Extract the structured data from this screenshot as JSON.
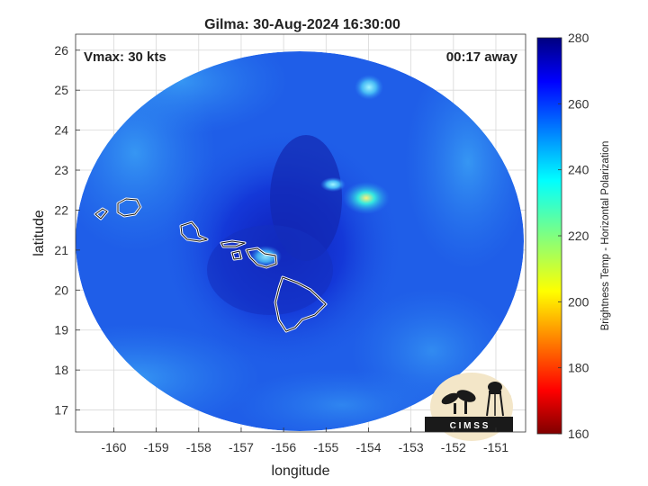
{
  "title": "Gilma: 30-Aug-2024 16:30:00",
  "vmax_label": "Vmax: 30 kts",
  "away_label": "00:17 away",
  "xlabel": "longitude",
  "ylabel": "latitude",
  "colorbar_label": "Brightness Temp - Horizontal Polarization",
  "logo_text": "C I M S S",
  "chart_data": {
    "type": "heatmap",
    "xlim": [
      -160.9,
      -150.3
    ],
    "ylim": [
      16.45,
      26.4
    ],
    "x_ticks": [
      -160,
      -159,
      -158,
      -157,
      -156,
      -155,
      -154,
      -153,
      -152,
      -151
    ],
    "y_ticks": [
      17,
      18,
      19,
      20,
      21,
      22,
      23,
      24,
      25,
      26
    ],
    "colorbar_range": [
      160,
      280
    ],
    "colorbar_ticks": [
      160,
      180,
      200,
      220,
      240,
      260,
      280
    ],
    "grid": true,
    "colormap": "jet"
  }
}
